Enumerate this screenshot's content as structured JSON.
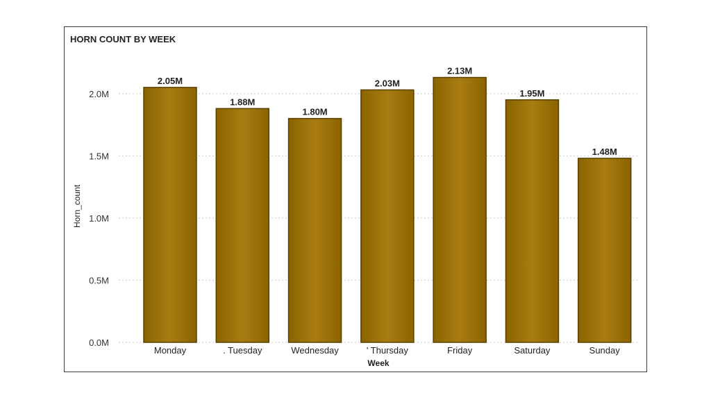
{
  "chart_data": {
    "type": "bar",
    "title": "HORN COUNT BY WEEK",
    "xlabel": "Week",
    "ylabel": "Horn_count",
    "categories": [
      "Monday",
      ". Tuesday",
      "Wednesday",
      "' Thursday",
      "Friday",
      "Saturday",
      "Sunday"
    ],
    "values": [
      2050000,
      1880000,
      1800000,
      2030000,
      2130000,
      1950000,
      1480000
    ],
    "data_labels": [
      "2.05M",
      "1.88M",
      "1.80M",
      "2.03M",
      "2.13M",
      "1.95M",
      "1.48M"
    ],
    "yticks": [
      0,
      500000,
      1000000,
      1500000,
      2000000
    ],
    "ytick_labels": [
      "0.0M",
      "0.5M",
      "1.0M",
      "1.5M",
      "2.0M"
    ],
    "ylim": [
      0,
      2200000
    ],
    "grid": true,
    "bar_color": "#8a6400",
    "bar_color_light": "#a87c12",
    "bar_edge": "#5a4000"
  }
}
